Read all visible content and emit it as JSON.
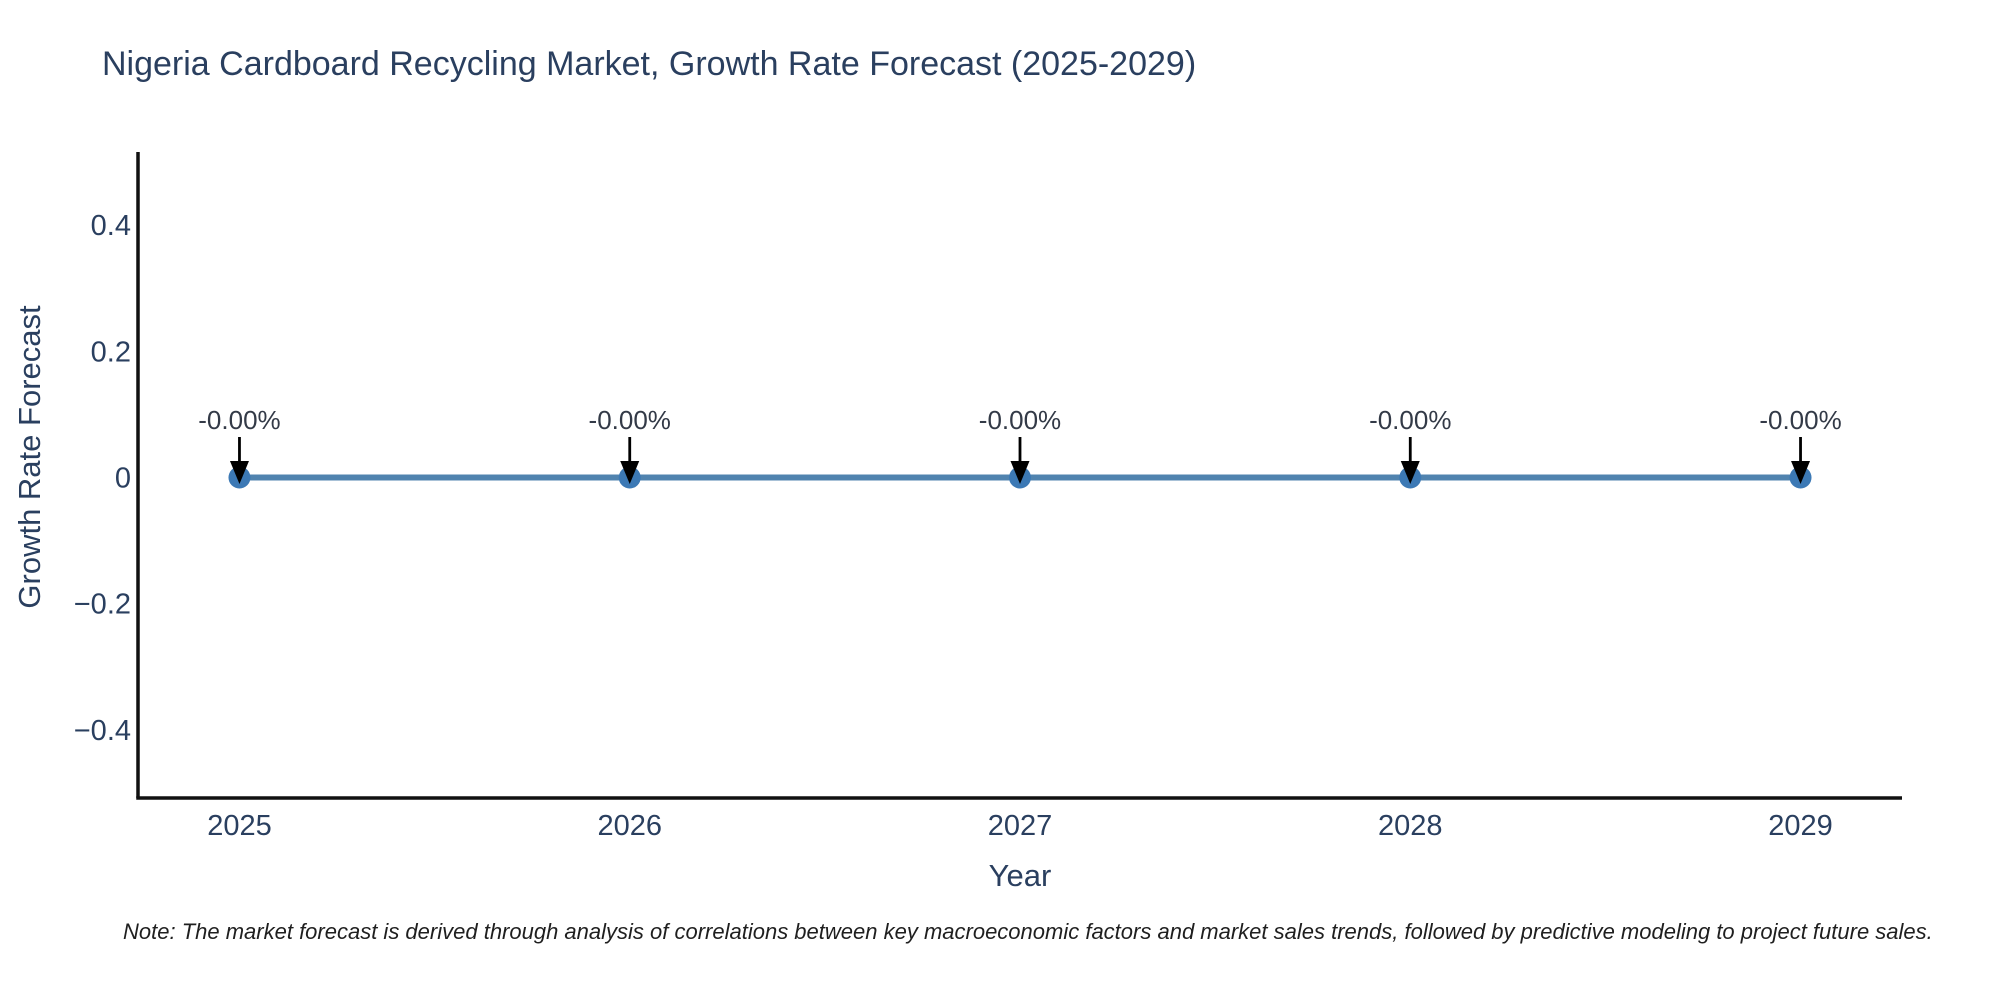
{
  "chart_data": {
    "type": "line",
    "title": "Nigeria Cardboard Recycling Market, Growth Rate Forecast (2025-2029)",
    "xlabel": "Year",
    "ylabel": "Growth Rate Forecast",
    "categories": [
      "2025",
      "2026",
      "2027",
      "2028",
      "2029"
    ],
    "x": [
      2025,
      2026,
      2027,
      2028,
      2029
    ],
    "series": [
      {
        "name": "Growth Rate Forecast",
        "values": [
          0,
          0,
          0,
          0,
          0
        ]
      }
    ],
    "point_labels": [
      "-0.00%",
      "-0.00%",
      "-0.00%",
      "-0.00%",
      "-0.00%"
    ],
    "ytick_values": [
      0.4,
      0.2,
      0,
      -0.2,
      -0.4
    ],
    "ytick_labels": [
      "0.4",
      "0.2",
      "0",
      "−0.2",
      "−0.4"
    ],
    "ylim": [
      -0.508,
      0.516
    ],
    "xlim": [
      2024.74,
      2029.26
    ],
    "grid": false,
    "legend": "none",
    "colors": {
      "line": "#5083af",
      "marker": "#3c79b5",
      "axis": "#111111",
      "tick_text": "#2a3f5f",
      "axis_title_text": "#2a3f5f",
      "title_text": "#2a3f5f",
      "annotation_text": "#333a47",
      "arrow": "#000000",
      "background": "#ffffff"
    },
    "note": "Note: The market forecast is derived through analysis of correlations between key macroeconomic factors and market sales trends, followed by predictive modeling to project future sales."
  }
}
